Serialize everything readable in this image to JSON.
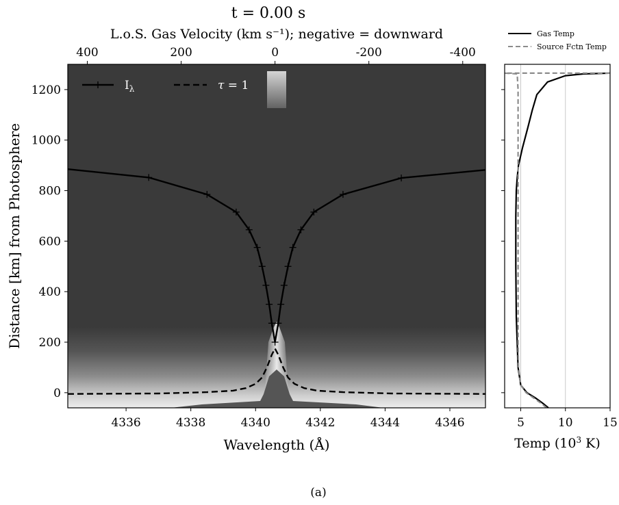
{
  "figure": {
    "title": "t = 0.00 s",
    "caption": "(a)"
  },
  "chart_data": [
    {
      "type": "heatmap",
      "xlabel": "Wavelength (Å)",
      "ylabel": "Distance [km] from Photosphere",
      "top_axis_label": "L.o.S. Gas Velocity (km s⁻¹); negative = downward",
      "xlim": [
        4334.2,
        4347.1
      ],
      "ylim": [
        -60,
        1300
      ],
      "x_ticks": [
        4336,
        4338,
        4340,
        4342,
        4344,
        4346
      ],
      "x_tick_labels": [
        "4336",
        "4338",
        "4340",
        "4342",
        "4344",
        "4346"
      ],
      "y_ticks": [
        0,
        200,
        400,
        600,
        800,
        1000,
        1200
      ],
      "y_tick_labels": [
        "0",
        "200",
        "400",
        "600",
        "800",
        "1000",
        "1200"
      ],
      "top_ticks": [
        400,
        200,
        0,
        -200,
        -400
      ],
      "top_tick_labels": [
        "400",
        "200",
        "0",
        "-200",
        "-400"
      ],
      "line_center": 4340.6,
      "velocity_per_angstrom": -69.0,
      "background": "dark grey above ~260 km, brightening toward the photosphere with a bright core near line center",
      "legend": {
        "placement": "top-left",
        "entries": [
          "I_λ",
          "τ = 1"
        ]
      },
      "series": [
        {
          "name": "I_λ",
          "style": "solid with + markers",
          "color": "#000000",
          "x": [
            4334.2,
            4336.7,
            4338.5,
            4339.4,
            4339.8,
            4340.05,
            4340.2,
            4340.32,
            4340.42,
            4340.5,
            4340.6,
            4340.7,
            4340.78,
            4340.88,
            4341.0,
            4341.15,
            4341.4,
            4341.8,
            4342.7,
            4344.5,
            4347.1
          ],
          "y": [
            885,
            852,
            785,
            715,
            645,
            575,
            500,
            425,
            350,
            275,
            200,
            275,
            350,
            425,
            500,
            575,
            645,
            715,
            785,
            850,
            882
          ]
        },
        {
          "name": "τ = 1",
          "style": "dashed",
          "color": "#000000",
          "x": [
            4334.2,
            4337.0,
            4338.5,
            4339.3,
            4339.7,
            4340.0,
            4340.2,
            4340.35,
            4340.5,
            4340.6,
            4340.7,
            4340.85,
            4341.0,
            4341.2,
            4341.5,
            4341.9,
            4342.7,
            4344.2,
            4347.1
          ],
          "y": [
            -5,
            -3,
            2,
            8,
            18,
            35,
            60,
            100,
            150,
            175,
            150,
            100,
            60,
            35,
            18,
            8,
            2,
            -3,
            -5
          ]
        }
      ]
    },
    {
      "type": "line",
      "xlabel": "Temp (10³ K)",
      "xlim": [
        3.2,
        15
      ],
      "ylim": [
        -60,
        1300
      ],
      "x_ticks": [
        5,
        10,
        15
      ],
      "x_tick_labels": [
        "5",
        "10",
        "15"
      ],
      "grid_x": [
        5,
        10
      ],
      "legend": {
        "placement": "above",
        "entries": [
          "Gas Temp",
          "Source Fctn Temp"
        ]
      },
      "series": [
        {
          "name": "Gas Temp",
          "style": "solid",
          "color": "#000000",
          "x": [
            8.1,
            7.4,
            6.6,
            5.7,
            5.0,
            4.7,
            4.6,
            4.5,
            4.45,
            4.45,
            4.5,
            4.6,
            4.75,
            5.2,
            5.8,
            6.3,
            6.8,
            8.0,
            10.0,
            12.0,
            15.0
          ],
          "y": [
            -60,
            -40,
            -20,
            0,
            30,
            100,
            200,
            300,
            500,
            700,
            800,
            850,
            900,
            970,
            1050,
            1120,
            1180,
            1230,
            1255,
            1262,
            1265
          ]
        },
        {
          "name": "Source Fctn Temp",
          "style": "dashed",
          "color": "#8c8c8c",
          "x": [
            7.9,
            7.2,
            6.4,
            5.6,
            5.0,
            4.75,
            4.7,
            4.7,
            4.7,
            4.7,
            4.7,
            4.6,
            3.2,
            15.0
          ],
          "y": [
            -60,
            -40,
            -20,
            0,
            30,
            100,
            200,
            500,
            800,
            1000,
            1200,
            1262,
            1265,
            1265
          ]
        }
      ]
    }
  ]
}
